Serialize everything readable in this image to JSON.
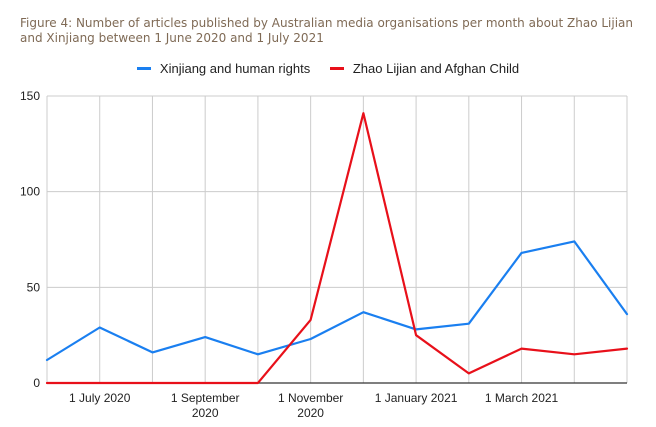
{
  "figure": {
    "title": "Figure 4: Number of articles published by Australian media organisations per month about Zhao Lijian and Xinjiang between 1 June 2020 and 1 July 2021"
  },
  "chart_data": {
    "type": "line",
    "title": "",
    "xlabel": "",
    "ylabel": "",
    "ylim": [
      0,
      150
    ],
    "y_ticks": [
      "0",
      "50",
      "100",
      "150"
    ],
    "x_ticks": [
      {
        "month_index": 1,
        "lines": [
          "1 July 2020"
        ]
      },
      {
        "month_index": 3,
        "lines": [
          "1 September",
          "2020"
        ]
      },
      {
        "month_index": 5,
        "lines": [
          "1 November",
          "2020"
        ]
      },
      {
        "month_index": 7,
        "lines": [
          "1 January 2021"
        ]
      },
      {
        "month_index": 9,
        "lines": [
          "1 March 2021"
        ]
      }
    ],
    "x": [
      "Jun 2020",
      "Jul 2020",
      "Aug 2020",
      "Sep 2020",
      "Oct 2020",
      "Nov 2020",
      "Dec 2020",
      "Jan 2021",
      "Feb 2021",
      "Mar 2021",
      "Apr 2021",
      "May 2021"
    ],
    "grid": true,
    "legend_position": "top",
    "series": [
      {
        "name": "Xinjiang and human rights",
        "color": "#1a7ff0",
        "values": [
          12,
          29,
          16,
          24,
          15,
          23,
          37,
          28,
          31,
          68,
          74,
          36
        ]
      },
      {
        "name": "Zhao Lijian and Afghan Child",
        "color": "#e8101a",
        "values": [
          0,
          0,
          0,
          0,
          0,
          33,
          141,
          25,
          5,
          18,
          15,
          18
        ]
      }
    ]
  }
}
